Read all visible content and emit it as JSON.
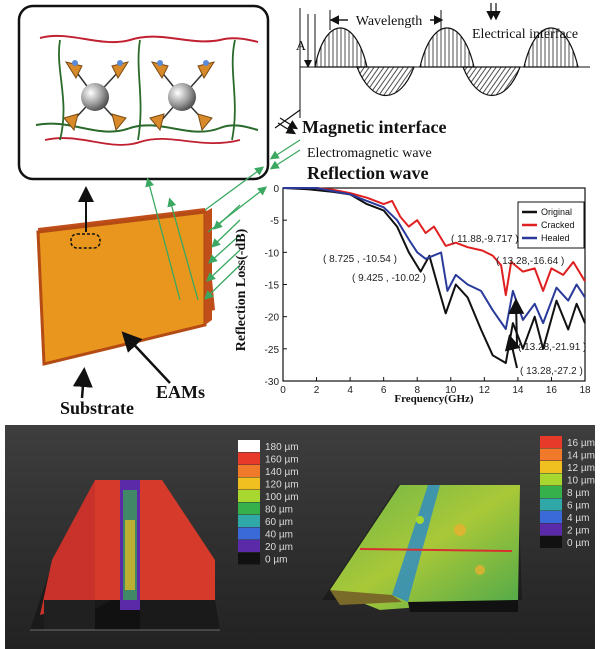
{
  "schematic": {
    "wavelength": "Wavelength",
    "amplitude": "A",
    "electrical_interface": "Electrical interface",
    "magnetic_interface": "Magnetic interface",
    "em_wave": "Electromagnetic wave",
    "reflection_wave": "Reflection wave",
    "eams": "EAMs",
    "substrate": "Substrate"
  },
  "chart_data": {
    "type": "line",
    "xlabel": "Frequency(GHz)",
    "ylabel": "Reflection Loss(-dB)",
    "xlim": [
      0,
      18
    ],
    "ylim": [
      -30,
      0
    ],
    "x_ticks": [
      "0",
      "2",
      "4",
      "6",
      "8",
      "10",
      "12",
      "14",
      "16",
      "18"
    ],
    "y_ticks": [
      "0",
      "-5",
      "-10",
      "-15",
      "-20",
      "-25",
      "-30"
    ],
    "grid": false,
    "legend_position": "top-right",
    "series": [
      {
        "name": "Original",
        "color": "#111111",
        "points": [
          [
            0,
            0
          ],
          [
            1.5,
            -0.2
          ],
          [
            3,
            -0.6
          ],
          [
            4,
            -1
          ],
          [
            5,
            -2.5
          ],
          [
            6,
            -3.5
          ],
          [
            6.8,
            -6
          ],
          [
            7.5,
            -10
          ],
          [
            8.2,
            -13
          ],
          [
            8.725,
            -10.54
          ],
          [
            9.2,
            -15
          ],
          [
            9.7,
            -19.5
          ],
          [
            10.3,
            -15
          ],
          [
            11,
            -17
          ],
          [
            11.8,
            -22
          ],
          [
            12.5,
            -26
          ],
          [
            13.28,
            -27.2
          ],
          [
            13.7,
            -21
          ],
          [
            14.3,
            -25
          ],
          [
            15,
            -20
          ],
          [
            15.5,
            -25
          ],
          [
            16.3,
            -17.5
          ],
          [
            17,
            -22
          ],
          [
            17.5,
            -18
          ],
          [
            18,
            -21
          ]
        ]
      },
      {
        "name": "Cracked",
        "color": "#e02020",
        "points": [
          [
            0,
            0
          ],
          [
            2,
            0
          ],
          [
            3,
            -0.3
          ],
          [
            4,
            -0.8
          ],
          [
            5,
            -1.5
          ],
          [
            6,
            -2.5
          ],
          [
            6.5,
            -2
          ],
          [
            7,
            -4.5
          ],
          [
            7.5,
            -6
          ],
          [
            8,
            -5
          ],
          [
            8.5,
            -7
          ],
          [
            9,
            -6
          ],
          [
            9.7,
            -9
          ],
          [
            10.3,
            -8.5
          ],
          [
            11,
            -9.2
          ],
          [
            11.88,
            -9.717
          ],
          [
            12.5,
            -10.5
          ],
          [
            13,
            -12
          ],
          [
            13.28,
            -16.64
          ],
          [
            13.6,
            -11.5
          ],
          [
            14.3,
            -13
          ],
          [
            15,
            -12.5
          ],
          [
            15.5,
            -16
          ],
          [
            16,
            -12.5
          ],
          [
            16.7,
            -13.5
          ],
          [
            17.3,
            -11.5
          ],
          [
            18,
            -14.5
          ]
        ]
      },
      {
        "name": "Healed",
        "color": "#2a3a9a",
        "points": [
          [
            0,
            0
          ],
          [
            2,
            0
          ],
          [
            3,
            -0.5
          ],
          [
            4,
            -1
          ],
          [
            5,
            -2
          ],
          [
            6,
            -3
          ],
          [
            6.8,
            -5
          ],
          [
            7.5,
            -8
          ],
          [
            8,
            -10
          ],
          [
            8.5,
            -11
          ],
          [
            9.425,
            -10.02
          ],
          [
            9.8,
            -16
          ],
          [
            10.3,
            -13.5
          ],
          [
            11,
            -15
          ],
          [
            11.8,
            -16
          ],
          [
            12.5,
            -19
          ],
          [
            13.28,
            -21.91
          ],
          [
            13.7,
            -16
          ],
          [
            14.3,
            -20.5
          ],
          [
            15,
            -18
          ],
          [
            15.5,
            -21
          ],
          [
            16.3,
            -15.5
          ],
          [
            17,
            -17.5
          ],
          [
            17.5,
            -15
          ],
          [
            18,
            -17
          ]
        ]
      }
    ],
    "annotations": [
      "( 8.725 , -10.54 )",
      "( 9.425 , -10.02 )",
      "( 11.88,-9.717 )",
      "( 13.28,-16.64 )",
      "( 13.28,-21.91 )",
      "( 13.28,-27.2 )"
    ]
  },
  "profiles": {
    "left_scale": [
      "180 µm",
      "160 µm",
      "140 µm",
      "120 µm",
      "100 µm",
      "80 µm",
      "60 µm",
      "40 µm",
      "20 µm",
      "0 µm"
    ],
    "right_scale": [
      "16 µm",
      "14 µm",
      "12 µm",
      "10 µm",
      "8 µm",
      "6 µm",
      "4 µm",
      "2 µm",
      "0 µm"
    ],
    "scale_colors": [
      "#ffffff",
      "#e83a2a",
      "#f07a2a",
      "#f0c020",
      "#a8d830",
      "#36b04a",
      "#30a8a8",
      "#3a6ad8",
      "#5a2aa8",
      "#111111"
    ],
    "right_scale_colors": [
      "#e83a2a",
      "#f07a2a",
      "#f0c020",
      "#a8d830",
      "#36b04a",
      "#30a8a8",
      "#3a6ad8",
      "#5a2aa8",
      "#111111"
    ]
  }
}
